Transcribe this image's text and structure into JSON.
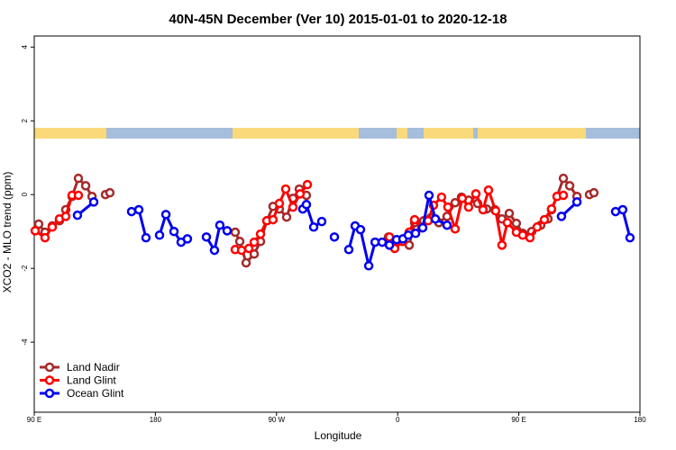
{
  "chart_data": {
    "type": "line",
    "title": "40N-45N December (Ver 10)   2015-01-01 to 2020-12-18",
    "x_label": "Longitude",
    "y_label": "XCO2 - MLO trend (ppm)",
    "xlim": [
      90,
      540
    ],
    "ylim": [
      -5.9,
      4.3
    ],
    "xticks": [
      {
        "value": 90,
        "label": "90 E"
      },
      {
        "value": 180,
        "label": "180"
      },
      {
        "value": 270,
        "label": "90 W"
      },
      {
        "value": 360,
        "label": "0"
      },
      {
        "value": 450,
        "label": "90 E"
      },
      {
        "value": 540,
        "label": "180"
      }
    ],
    "yticks": [
      4,
      2,
      0,
      -2,
      -4
    ],
    "legend_position": "bottom-left",
    "series": [
      {
        "name": "Land Nadir",
        "color": "#a52a2a",
        "x": [
          93.3,
          98.0,
          103.4,
          108.7,
          113.4,
          118.1,
          122.8,
          128.2,
          132.9,
          null,
          142.9,
          146.2,
          null,
          239.3,
          242.7,
          247.4,
          253.4,
          258.1,
          262.8,
          267.4,
          272.1,
          277.5,
          282.2,
          286.9,
          292.2,
          null,
          353.2,
          357.2,
          363.2,
          368.6,
          372.6,
          379.3,
          384.6,
          390.6,
          396.7,
          402.7,
          407.4,
          412.7,
          419.4,
          426.1,
          432.2,
          437.5,
          442.9,
          448.2,
          452.9,
          459.6,
          466.3,
          471.7,
          474.3,
          478.4,
          483.1,
          487.8,
          493.2,
          null,
          502.5,
          505.8
        ],
        "values": [
          -0.8,
          -1.02,
          -0.85,
          -0.71,
          -0.41,
          -0.05,
          0.44,
          0.24,
          -0.05,
          null,
          0.0,
          0.05,
          null,
          -1.02,
          -1.27,
          -1.85,
          -1.61,
          -1.27,
          -0.71,
          -0.32,
          -0.39,
          -0.61,
          -0.1,
          0.15,
          -0.02,
          null,
          -1.15,
          -1.27,
          -1.27,
          -1.37,
          -0.76,
          -0.71,
          -0.63,
          -0.76,
          -0.59,
          -0.22,
          -0.07,
          -0.15,
          -0.24,
          -0.39,
          -0.41,
          -0.66,
          -0.51,
          -0.78,
          -1.05,
          -1.0,
          -0.83,
          -0.66,
          -0.41,
          -0.05,
          0.44,
          0.24,
          -0.05,
          null,
          0.0,
          0.05
        ]
      },
      {
        "name": "Land Glint",
        "color": "#ff0000",
        "x": [
          90.7,
          98.0,
          103.4,
          108.7,
          113.4,
          118.1,
          122.8,
          null,
          239.3,
          244.0,
          249.4,
          253.4,
          258.1,
          262.8,
          267.4,
          272.1,
          276.8,
          282.2,
          287.5,
          292.9,
          null,
          353.9,
          357.8,
          363.9,
          368.6,
          372.6,
          377.9,
          382.6,
          386.6,
          392.6,
          397.3,
          402.7,
          408.0,
          412.7,
          418.1,
          423.4,
          427.5,
          432.8,
          437.5,
          441.5,
          448.2,
          452.9,
          458.3,
          463.6,
          469.0,
          474.3,
          478.4,
          483.1
        ],
        "values": [
          -0.98,
          -1.17,
          -0.88,
          -0.66,
          -0.59,
          -0.02,
          -0.02,
          null,
          -1.49,
          -1.51,
          -1.46,
          -1.29,
          -1.07,
          -0.71,
          -0.68,
          -0.24,
          0.15,
          -0.34,
          0.02,
          0.27,
          null,
          -1.15,
          -1.46,
          -1.27,
          -1.02,
          -0.68,
          -0.9,
          -0.71,
          -0.29,
          -0.07,
          -0.34,
          -0.93,
          -0.1,
          -0.34,
          0.02,
          -0.41,
          0.12,
          -0.44,
          -1.37,
          -0.76,
          -1.02,
          -1.1,
          -1.17,
          -0.88,
          -0.68,
          -0.39,
          -0.05,
          -0.02
        ]
      },
      {
        "name": "Ocean Glint",
        "color": "#0000ee",
        "x": [
          122.1,
          134.2,
          null,
          162.3,
          167.7,
          173.0,
          null,
          183.1,
          187.8,
          193.8,
          199.1,
          203.8,
          null,
          217.9,
          223.9,
          227.9,
          233.3,
          null,
          289.5,
          292.2,
          297.6,
          303.6,
          null,
          313.0,
          null,
          323.7,
          328.4,
          332.4,
          338.5,
          343.2,
          348.5,
          353.9,
          359.2,
          363.9,
          367.9,
          373.3,
          378.6,
          383.3,
          388.0,
          396.7,
          null,
          481.7,
          493.2,
          null,
          521.9,
          527.2,
          532.6
        ],
        "values": [
          -0.56,
          -0.2,
          null,
          -0.46,
          -0.41,
          -1.17,
          null,
          -1.1,
          -0.54,
          -1.0,
          -1.29,
          -1.2,
          null,
          -1.15,
          -1.51,
          -0.83,
          -0.98,
          null,
          -0.39,
          -0.27,
          -0.88,
          -0.73,
          null,
          -1.15,
          null,
          -1.49,
          -0.85,
          -0.95,
          -1.93,
          -1.29,
          -1.29,
          -1.37,
          -1.22,
          -1.2,
          -1.1,
          -1.05,
          -0.9,
          -0.02,
          -0.66,
          -0.83,
          null,
          -0.59,
          -0.2,
          null,
          -0.46,
          -0.41,
          -1.17
        ]
      }
    ]
  }
}
